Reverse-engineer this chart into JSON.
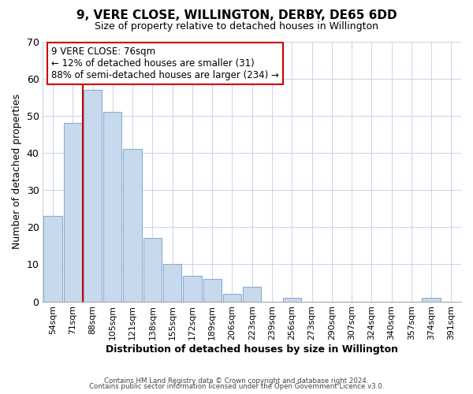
{
  "title": "9, VERE CLOSE, WILLINGTON, DERBY, DE65 6DD",
  "subtitle": "Size of property relative to detached houses in Willington",
  "xlabel": "Distribution of detached houses by size in Willington",
  "ylabel": "Number of detached properties",
  "bar_labels": [
    "54sqm",
    "71sqm",
    "88sqm",
    "105sqm",
    "121sqm",
    "138sqm",
    "155sqm",
    "172sqm",
    "189sqm",
    "206sqm",
    "223sqm",
    "239sqm",
    "256sqm",
    "273sqm",
    "290sqm",
    "307sqm",
    "324sqm",
    "340sqm",
    "357sqm",
    "374sqm",
    "391sqm"
  ],
  "bar_heights": [
    23,
    48,
    57,
    51,
    41,
    17,
    10,
    7,
    6,
    2,
    4,
    0,
    1,
    0,
    0,
    0,
    0,
    0,
    0,
    1,
    0
  ],
  "bar_color": "#c8d9ee",
  "bar_edge_color": "#8aadcf",
  "vline_color": "#cc0000",
  "ylim": [
    0,
    70
  ],
  "yticks": [
    0,
    10,
    20,
    30,
    40,
    50,
    60,
    70
  ],
  "annotation_title": "9 VERE CLOSE: 76sqm",
  "annotation_line1": "← 12% of detached houses are smaller (31)",
  "annotation_line2": "88% of semi-detached houses are larger (234) →",
  "annotation_box_color": "#ffffff",
  "annotation_box_edge": "#cc0000",
  "footnote1": "Contains HM Land Registry data © Crown copyright and database right 2024.",
  "footnote2": "Contains public sector information licensed under the Open Government Licence v3.0.",
  "background_color": "#ffffff",
  "grid_color": "#c8d4e8"
}
